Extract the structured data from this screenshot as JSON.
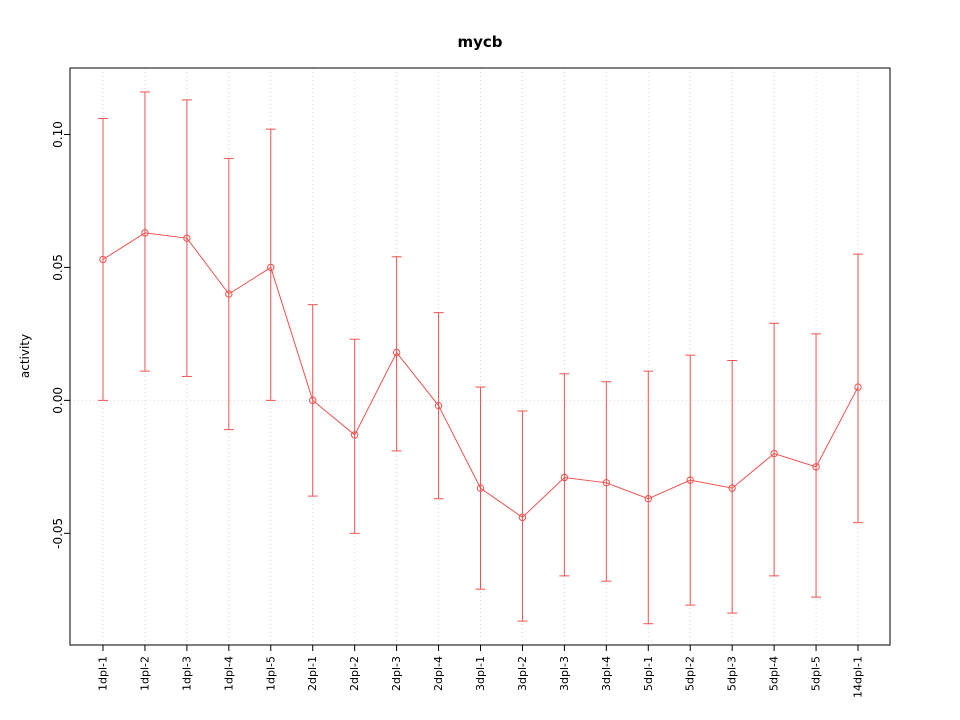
{
  "chart_data": {
    "type": "line",
    "title": "mycb",
    "xlabel": "",
    "ylabel": "activity",
    "categories": [
      "1dpl-1",
      "1dpl-2",
      "1dpl-3",
      "1dpl-4",
      "1dpl-5",
      "2dpl-1",
      "2dpl-2",
      "2dpl-3",
      "2dpl-4",
      "3dpl-1",
      "3dpl-2",
      "3dpl-3",
      "3dpl-4",
      "5dpl-1",
      "5dpl-2",
      "5dpl-3",
      "5dpl-4",
      "5dpl-5",
      "14dpl-1"
    ],
    "series": [
      {
        "name": "mycb activity",
        "values": [
          0.053,
          0.063,
          0.061,
          0.04,
          0.05,
          0.0,
          -0.013,
          0.018,
          -0.002,
          -0.033,
          -0.044,
          -0.029,
          -0.031,
          -0.037,
          -0.03,
          -0.033,
          -0.02,
          -0.025,
          0.005
        ],
        "upper": [
          0.106,
          0.116,
          0.113,
          0.091,
          0.102,
          0.036,
          0.023,
          0.054,
          0.033,
          0.005,
          -0.004,
          0.01,
          0.007,
          0.011,
          0.017,
          0.015,
          0.029,
          0.025,
          0.055
        ],
        "lower": [
          0.0,
          0.011,
          0.009,
          -0.011,
          0.0,
          -0.036,
          -0.05,
          -0.019,
          -0.037,
          -0.071,
          -0.083,
          -0.066,
          -0.068,
          -0.084,
          -0.077,
          -0.08,
          -0.066,
          -0.074,
          -0.046
        ]
      }
    ],
    "yticks": [
      -0.05,
      0.0,
      0.05,
      0.1
    ],
    "ylim": [
      -0.092,
      0.125
    ],
    "grid": true,
    "legend": "none",
    "point_style": "open-circle",
    "error_bars": true,
    "zero_line": true,
    "colors": {
      "line": "#ef5350",
      "grid": "#d7d7d7",
      "axis": "#000000",
      "background": "#ffffff"
    }
  }
}
